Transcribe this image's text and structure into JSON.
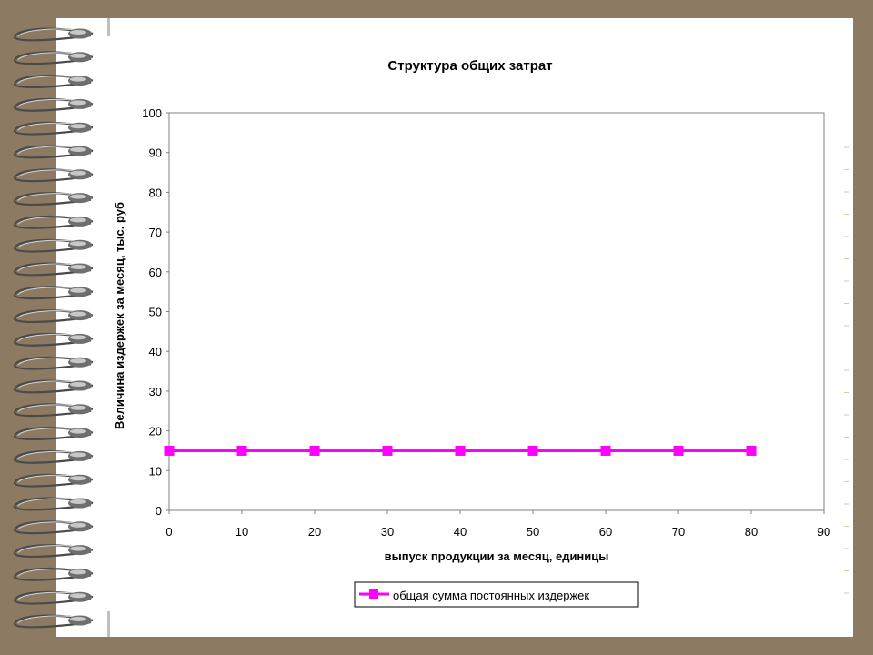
{
  "colors": {
    "frame": "#8c7a62",
    "page": "#ffffff",
    "series": "#ff00ff",
    "axis": "#808080"
  },
  "decor": {
    "binding": "spiral-binding-icon"
  },
  "chart_data": {
    "type": "line",
    "title": "Структура общих затрат",
    "xlabel": "выпуск продукции за месяц, единицы",
    "ylabel": "Величина издержек за месяц, тыс. руб",
    "xlim": [
      0,
      90
    ],
    "ylim": [
      0,
      100
    ],
    "xticks": [
      0,
      10,
      20,
      30,
      40,
      50,
      60,
      70,
      80,
      90
    ],
    "yticks": [
      0,
      10,
      20,
      30,
      40,
      50,
      60,
      70,
      80,
      90,
      100
    ],
    "grid": false,
    "legend_position": "bottom",
    "series": [
      {
        "name": "общая сумма постоянных издержек",
        "color": "#ff00ff",
        "marker": "square",
        "x": [
          0,
          10,
          20,
          30,
          40,
          50,
          60,
          70,
          80
        ],
        "y": [
          15,
          15,
          15,
          15,
          15,
          15,
          15,
          15,
          15
        ]
      }
    ]
  }
}
